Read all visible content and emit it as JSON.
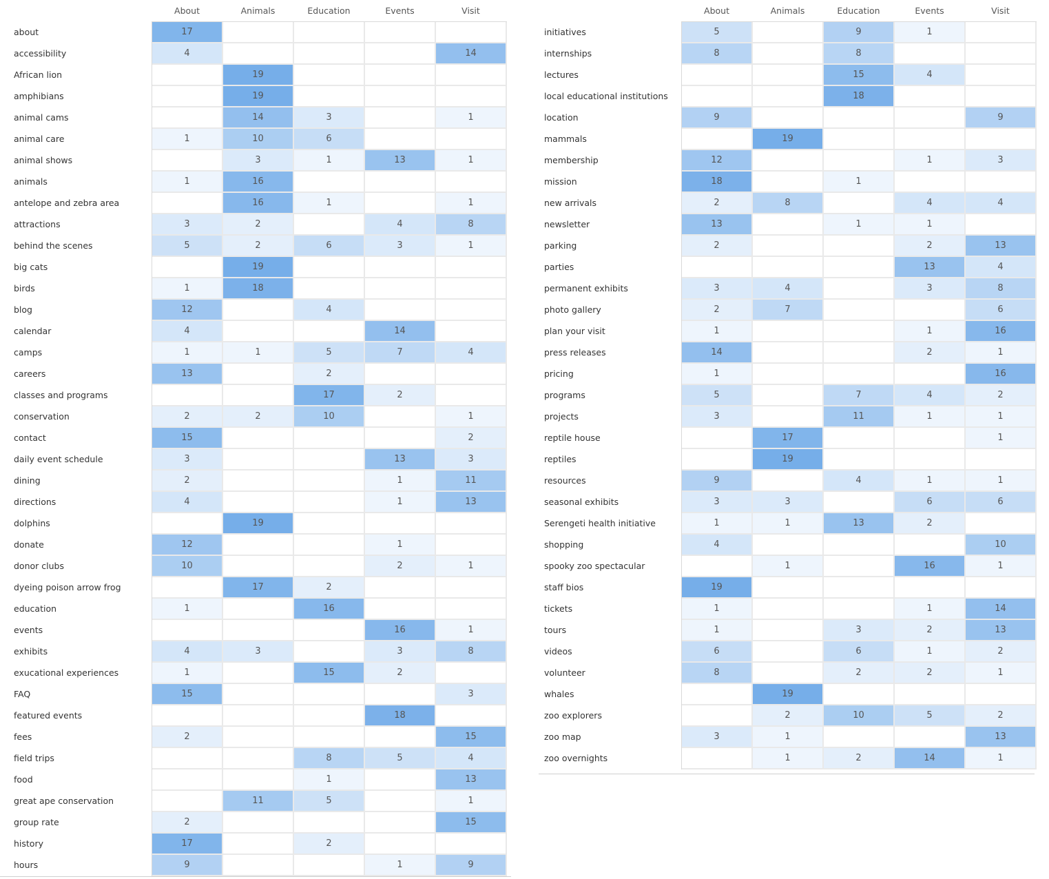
{
  "chart_data": [
    {
      "type": "heatmap",
      "columns": [
        "About",
        "Animals",
        "Education",
        "Events",
        "Visit"
      ],
      "colors": {
        "low": "#eef5fd",
        "high": "#76aee9",
        "text": "#555555",
        "empty": "#ffffff"
      },
      "value_range": [
        1,
        19
      ],
      "rows": [
        {
          "label": "about",
          "values": [
            17,
            null,
            null,
            null,
            null
          ]
        },
        {
          "label": "accessibility",
          "values": [
            4,
            null,
            null,
            null,
            14
          ]
        },
        {
          "label": "African lion",
          "values": [
            null,
            19,
            null,
            null,
            null
          ]
        },
        {
          "label": "amphibians",
          "values": [
            null,
            19,
            null,
            null,
            null
          ]
        },
        {
          "label": "animal cams",
          "values": [
            null,
            14,
            3,
            null,
            1
          ]
        },
        {
          "label": "animal care",
          "values": [
            1,
            10,
            6,
            null,
            null
          ]
        },
        {
          "label": "animal shows",
          "values": [
            null,
            3,
            1,
            13,
            1
          ]
        },
        {
          "label": "animals",
          "values": [
            1,
            16,
            null,
            null,
            null
          ]
        },
        {
          "label": "antelope and zebra area",
          "values": [
            null,
            16,
            1,
            null,
            1
          ]
        },
        {
          "label": "attractions",
          "values": [
            3,
            2,
            null,
            4,
            8
          ]
        },
        {
          "label": "behind the scenes",
          "values": [
            5,
            2,
            6,
            3,
            1
          ]
        },
        {
          "label": "big cats",
          "values": [
            null,
            19,
            null,
            null,
            null
          ]
        },
        {
          "label": "birds",
          "values": [
            1,
            18,
            null,
            null,
            null
          ]
        },
        {
          "label": "blog",
          "values": [
            12,
            null,
            4,
            null,
            null
          ]
        },
        {
          "label": "calendar",
          "values": [
            4,
            null,
            null,
            14,
            null
          ]
        },
        {
          "label": "camps",
          "values": [
            1,
            1,
            5,
            7,
            4
          ]
        },
        {
          "label": "careers",
          "values": [
            13,
            null,
            2,
            null,
            null
          ]
        },
        {
          "label": "classes and programs",
          "values": [
            null,
            null,
            17,
            2,
            null
          ]
        },
        {
          "label": "conservation",
          "values": [
            2,
            2,
            10,
            null,
            1
          ]
        },
        {
          "label": "contact",
          "values": [
            15,
            null,
            null,
            null,
            2
          ]
        },
        {
          "label": "daily event schedule",
          "values": [
            3,
            null,
            null,
            13,
            3
          ]
        },
        {
          "label": "dining",
          "values": [
            2,
            null,
            null,
            1,
            11
          ]
        },
        {
          "label": "directions",
          "values": [
            4,
            null,
            null,
            1,
            13
          ]
        },
        {
          "label": "dolphins",
          "values": [
            null,
            19,
            null,
            null,
            null
          ]
        },
        {
          "label": "donate",
          "values": [
            12,
            null,
            null,
            1,
            null
          ]
        },
        {
          "label": "donor clubs",
          "values": [
            10,
            null,
            null,
            2,
            1
          ]
        },
        {
          "label": "dyeing poison arrow frog",
          "values": [
            null,
            17,
            2,
            null,
            null
          ]
        },
        {
          "label": "education",
          "values": [
            1,
            null,
            16,
            null,
            null
          ]
        },
        {
          "label": "events",
          "values": [
            null,
            null,
            null,
            16,
            1
          ]
        },
        {
          "label": "exhibits",
          "values": [
            4,
            3,
            null,
            3,
            8
          ]
        },
        {
          "label": "exucational experiences",
          "values": [
            1,
            null,
            15,
            2,
            null
          ]
        },
        {
          "label": "FAQ",
          "values": [
            15,
            null,
            null,
            null,
            3
          ]
        },
        {
          "label": "featured events",
          "values": [
            null,
            null,
            null,
            18,
            null
          ]
        },
        {
          "label": "fees",
          "values": [
            2,
            null,
            null,
            null,
            15
          ]
        },
        {
          "label": "field trips",
          "values": [
            null,
            null,
            8,
            5,
            4
          ]
        },
        {
          "label": "food",
          "values": [
            null,
            null,
            1,
            null,
            13
          ]
        },
        {
          "label": "great ape conservation",
          "values": [
            null,
            11,
            5,
            null,
            1
          ]
        },
        {
          "label": "group rate",
          "values": [
            2,
            null,
            null,
            null,
            15
          ]
        },
        {
          "label": "history",
          "values": [
            17,
            null,
            2,
            null,
            null
          ]
        },
        {
          "label": "hours",
          "values": [
            9,
            null,
            null,
            1,
            9
          ]
        }
      ]
    },
    {
      "type": "heatmap",
      "columns": [
        "About",
        "Animals",
        "Education",
        "Events",
        "Visit"
      ],
      "colors": {
        "low": "#eef5fd",
        "high": "#76aee9",
        "text": "#555555",
        "empty": "#ffffff"
      },
      "value_range": [
        1,
        19
      ],
      "rows": [
        {
          "label": "initiatives",
          "values": [
            5,
            null,
            9,
            1,
            null
          ]
        },
        {
          "label": "internships",
          "values": [
            8,
            null,
            8,
            null,
            null
          ]
        },
        {
          "label": "lectures",
          "values": [
            null,
            null,
            15,
            4,
            null
          ]
        },
        {
          "label": "local educational institutions",
          "values": [
            null,
            null,
            18,
            null,
            null
          ]
        },
        {
          "label": "location",
          "values": [
            9,
            null,
            null,
            null,
            9
          ]
        },
        {
          "label": "mammals",
          "values": [
            null,
            19,
            null,
            null,
            null
          ]
        },
        {
          "label": "membership",
          "values": [
            12,
            null,
            null,
            1,
            3
          ]
        },
        {
          "label": "mission",
          "values": [
            18,
            null,
            1,
            null,
            null
          ]
        },
        {
          "label": "new arrivals",
          "values": [
            2,
            8,
            null,
            4,
            4
          ]
        },
        {
          "label": "newsletter",
          "values": [
            13,
            null,
            1,
            1,
            null
          ]
        },
        {
          "label": "parking",
          "values": [
            2,
            null,
            null,
            2,
            13
          ]
        },
        {
          "label": "parties",
          "values": [
            null,
            null,
            null,
            13,
            4
          ]
        },
        {
          "label": "permanent exhibits",
          "values": [
            3,
            4,
            null,
            3,
            8
          ]
        },
        {
          "label": "photo gallery",
          "values": [
            2,
            7,
            null,
            null,
            6
          ]
        },
        {
          "label": "plan your visit",
          "values": [
            1,
            null,
            null,
            1,
            16
          ]
        },
        {
          "label": "press releases",
          "values": [
            14,
            null,
            null,
            2,
            1
          ]
        },
        {
          "label": "pricing",
          "values": [
            1,
            null,
            null,
            null,
            16
          ]
        },
        {
          "label": "programs",
          "values": [
            5,
            null,
            7,
            4,
            2
          ]
        },
        {
          "label": "projects",
          "values": [
            3,
            null,
            11,
            1,
            1
          ]
        },
        {
          "label": "reptile house",
          "values": [
            null,
            17,
            null,
            null,
            1
          ]
        },
        {
          "label": "reptiles",
          "values": [
            null,
            19,
            null,
            null,
            null
          ]
        },
        {
          "label": "resources",
          "values": [
            9,
            null,
            4,
            1,
            1
          ]
        },
        {
          "label": "seasonal exhibits",
          "values": [
            3,
            3,
            null,
            6,
            6
          ]
        },
        {
          "label": "Serengeti health initiative",
          "values": [
            1,
            1,
            13,
            2,
            null
          ]
        },
        {
          "label": "shopping",
          "values": [
            4,
            null,
            null,
            null,
            10
          ]
        },
        {
          "label": "spooky zoo spectacular",
          "values": [
            null,
            1,
            null,
            16,
            1
          ]
        },
        {
          "label": "staff bios",
          "values": [
            19,
            null,
            null,
            null,
            null
          ]
        },
        {
          "label": "tickets",
          "values": [
            1,
            null,
            null,
            1,
            14
          ]
        },
        {
          "label": "tours",
          "values": [
            1,
            null,
            3,
            2,
            13
          ]
        },
        {
          "label": "videos",
          "values": [
            6,
            null,
            6,
            1,
            2
          ]
        },
        {
          "label": "volunteer",
          "values": [
            8,
            null,
            2,
            2,
            1
          ]
        },
        {
          "label": "whales",
          "values": [
            null,
            19,
            null,
            null,
            null
          ]
        },
        {
          "label": "zoo explorers",
          "values": [
            null,
            2,
            10,
            5,
            2
          ]
        },
        {
          "label": "zoo map",
          "values": [
            3,
            1,
            null,
            null,
            13
          ]
        },
        {
          "label": "zoo overnights",
          "values": [
            null,
            1,
            2,
            14,
            1
          ]
        }
      ]
    }
  ]
}
